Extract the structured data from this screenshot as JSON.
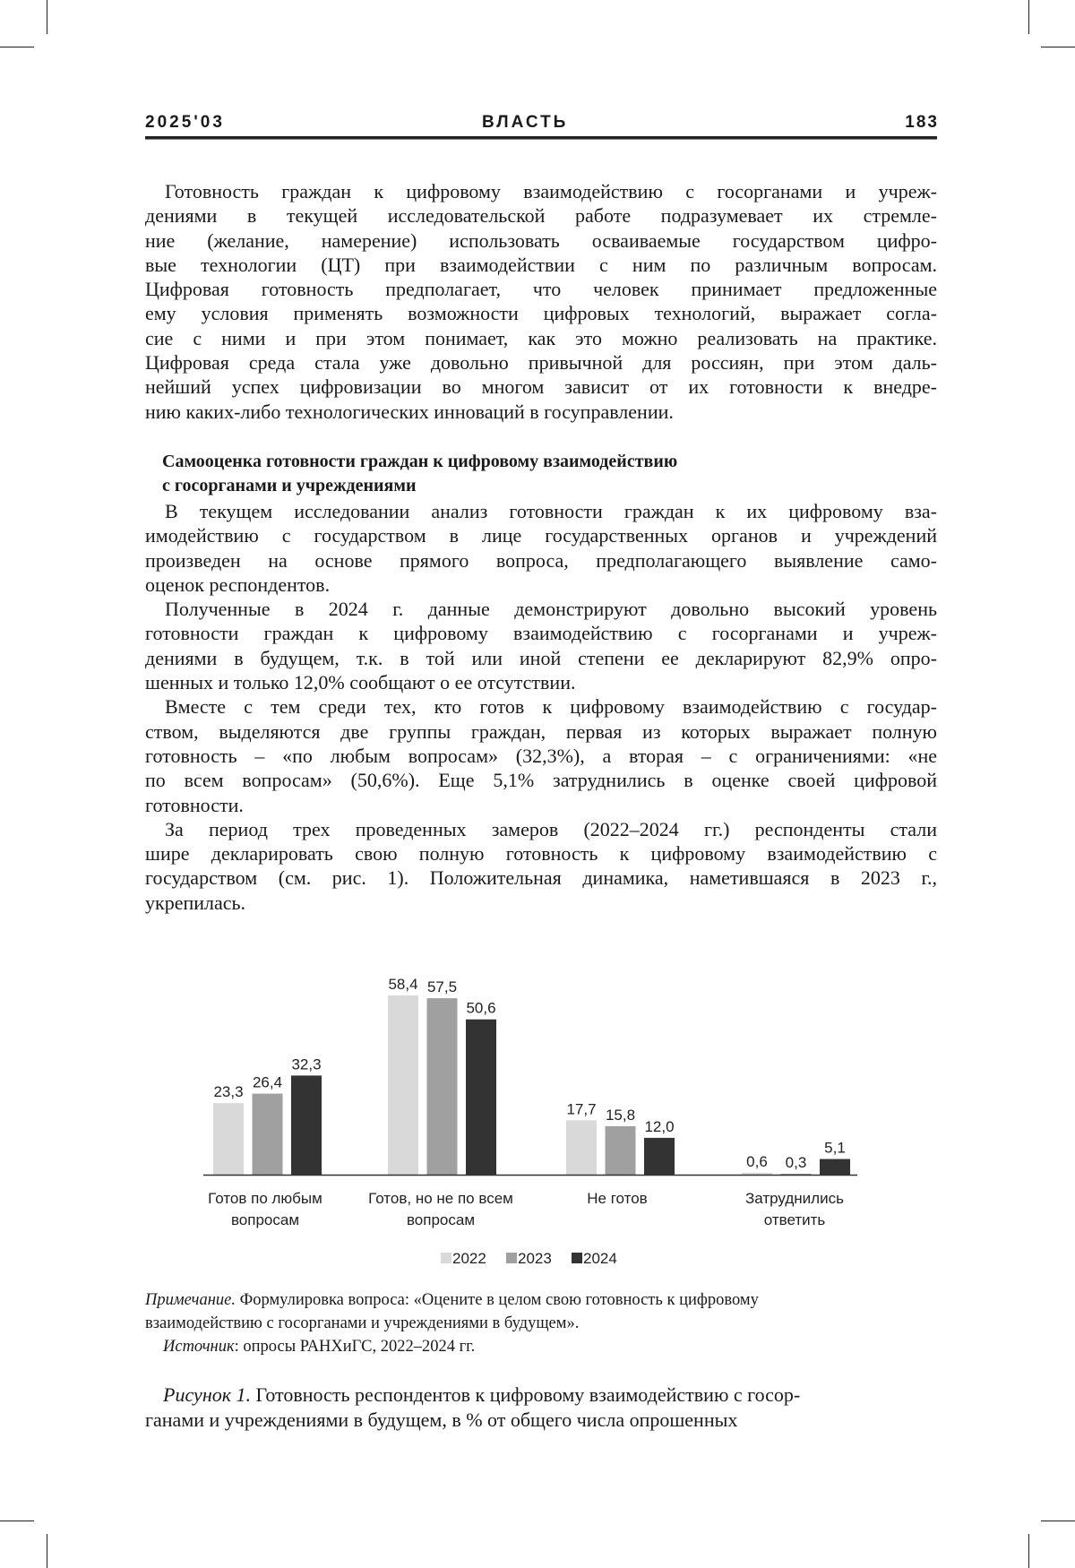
{
  "header": {
    "issue": "2025'03",
    "journal": "ВЛАСТЬ",
    "page": "183"
  },
  "intro_paragraph": [
    "Готовность граждан к цифровому взаимодействию с госорганами и учреж-",
    "дениями в текущей исследовательской работе подразумевает их стремле-",
    "ние (желание, намерение) использовать осваиваемые государством цифро-",
    "вые технологии (ЦТ) при взаимодействии с ним по различным вопросам.",
    "Цифровая готовность предполагает, что человек принимает предложенные",
    "ему условия применять возможности цифровых технологий, выражает согла-",
    "сие с ними и при этом понимает, как это можно реализовать на практике.",
    "Цифровая среда стала уже довольно привычной для россиян, при этом даль-",
    "нейший успех цифровизации во многом зависит от их готовности к внедре-",
    "нию каких-либо технологических инноваций в госуправлении."
  ],
  "section_heading": [
    "Самооценка готовности граждан к цифровому взаимодействию",
    "с госорганами и учреждениями"
  ],
  "paragraphs": [
    [
      "В текущем исследовании анализ готовности граждан к их цифровому вза-",
      "имодействию с государством в лице государственных органов и учреждений",
      "произведен на основе прямого вопроса, предполагающего выявление само-",
      "оценок респондентов."
    ],
    [
      "Полученные в 2024 г. данные демонстрируют довольно высокий уровень",
      "готовности граждан к цифровому взаимодействию с госорганами и учреж-",
      "дениями в будущем, т.к. в той или иной степени ее декларируют 82,9% опро-",
      "шенных и только 12,0% сообщают о ее отсутствии."
    ],
    [
      "Вместе с тем среди тех, кто готов к цифровому взаимодействию с государ-",
      "ством, выделяются две группы граждан, первая из которых выражает полную",
      "готовность – «по любым вопросам» (32,3%), а вторая – с ограничениями: «не",
      "по всем вопросам» (50,6%). Еще 5,1% затруднились в оценке своей цифровой",
      "готовности."
    ],
    [
      "За период трех проведенных замеров (2022–2024 гг.) респонденты стали",
      "шире декларировать свою полную готовность к цифровому взаимодействию с",
      "государством (см. рис. 1). Положительная динамика, наметившаяся в 2023 г.,",
      "укрепилась."
    ]
  ],
  "chart_data": {
    "type": "bar",
    "categories": [
      [
        "Готов  по любым",
        "вопросам"
      ],
      [
        "Готов, но не по всем",
        "вопросам"
      ],
      [
        "Не готов",
        ""
      ],
      [
        "Затруднились",
        "ответить"
      ]
    ],
    "series": [
      {
        "name": "2022",
        "values": [
          23.3,
          58.4,
          17.7,
          0.6
        ],
        "labels": [
          "23,3",
          "58,4",
          "17,7",
          "0,6"
        ],
        "color": "#d9d9d9"
      },
      {
        "name": "2023",
        "values": [
          26.4,
          57.5,
          15.8,
          0.3
        ],
        "labels": [
          "26,4",
          "57,5",
          "15,8",
          "0,3"
        ],
        "color": "#a0a0a0"
      },
      {
        "name": "2024",
        "values": [
          32.3,
          50.6,
          12.0,
          5.1
        ],
        "labels": [
          "32,3",
          "50,6",
          "12,0",
          "5,1"
        ],
        "color": "#333333"
      }
    ],
    "ylim": [
      0,
      60
    ],
    "grid": false,
    "legend": "bottom"
  },
  "note": {
    "note_label": "Примечание.",
    "note_text": " Формулировка вопроса: «Оцените в целом свою готовность к цифровому",
    "note_text2": "взаимодействию с госорганами и учреждениями в будущем».",
    "source_label": "Источник",
    "source_text": ": опросы РАНХиГС, 2022–2024 гг."
  },
  "caption": {
    "label": "Рисунок 1.",
    "text1": " Готовность респондентов к цифровому взаимодействию с госор-",
    "text2": "ганами и учреждениями в будущем, в % от общего числа опрошенных"
  }
}
